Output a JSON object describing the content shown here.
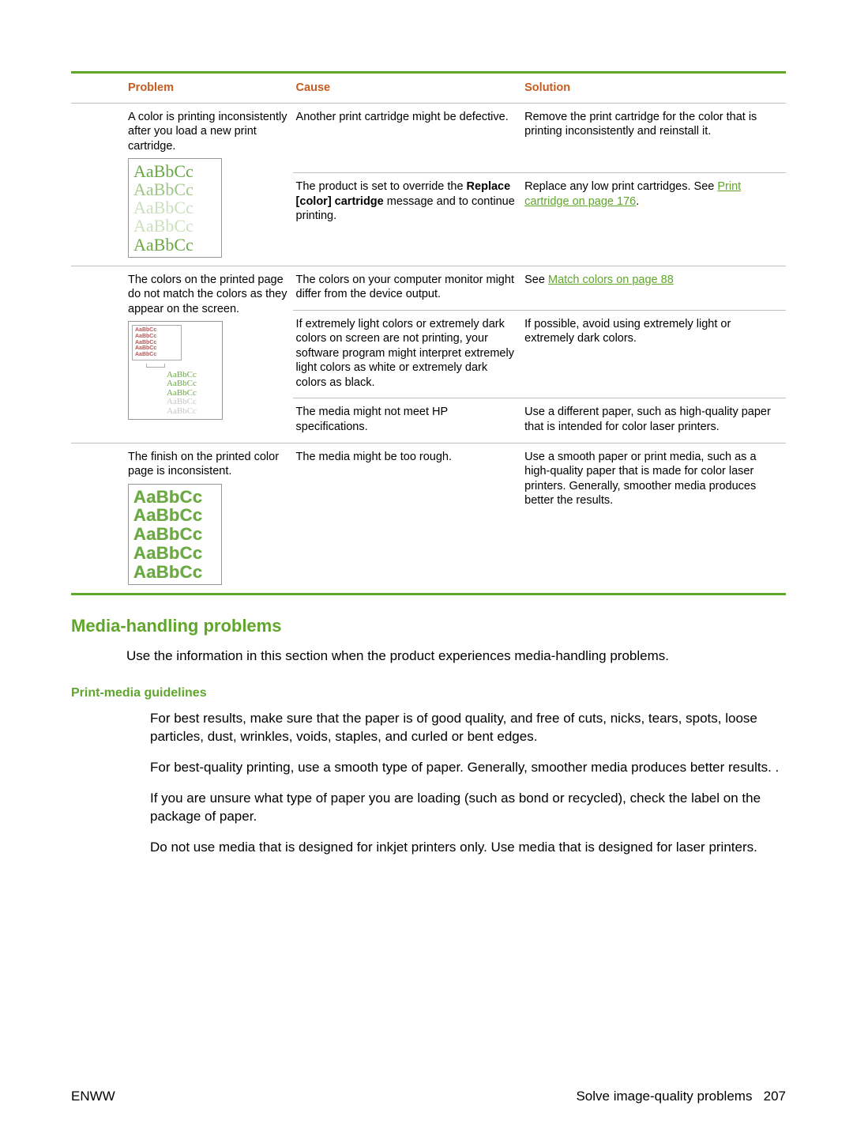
{
  "colors": {
    "accent_green": "#5fa62b",
    "header_orange": "#c75c1f",
    "rule_gray": "#bfbfbf",
    "sample_green": "#6aa843",
    "link_green": "#5fa62b"
  },
  "table": {
    "headers": {
      "problem": "Problem",
      "cause": "Cause",
      "solution": "Solution"
    },
    "rows": [
      {
        "problem": "A color is printing inconsistently after you load a new print cartridge.",
        "sample": "fade",
        "cause_solution": [
          {
            "cause": "Another print cartridge might be defective.",
            "solution": "Remove the print cartridge for the color that is printing inconsistently and reinstall it."
          },
          {
            "cause_pre": "The product is set to override the ",
            "cause_bold": "Replace [color] cartridge",
            "cause_post": " message and to continue printing.",
            "solution_pre": "Replace any low print cartridges. See ",
            "solution_link": "Print cartridge on page 176",
            "solution_post": "."
          }
        ]
      },
      {
        "problem": "The colors on the printed page do not match the colors as they appear on the screen.",
        "sample": "mismatch",
        "cause_solution": [
          {
            "cause": "The colors on your computer monitor might differ from the device output.",
            "solution_pre": "See ",
            "solution_link": "Match colors on page 88",
            "solution_post": ""
          },
          {
            "cause": "If extremely light colors or extremely dark colors on screen are not printing, your software program might interpret extremely light colors as white or extremely dark colors as black.",
            "solution": "If possible, avoid using extremely light or extremely dark colors."
          },
          {
            "cause": "The media might not meet HP specifications.",
            "solution": "Use a different paper, such as high-quality paper that is intended for color laser printers."
          }
        ]
      },
      {
        "problem": "The finish on the printed color page is inconsistent.",
        "sample": "rough",
        "cause_solution": [
          {
            "cause": "The media might be too rough.",
            "solution": "Use a smooth paper or print media, such as a high-quality paper that is made for color laser printers. Generally, smoother media produces better the results."
          }
        ]
      }
    ]
  },
  "section": {
    "heading": "Media-handling problems",
    "intro": "Use the information in this section when the product experiences media-handling problems.",
    "sub_heading": "Print-media guidelines",
    "guidelines": [
      "For best results, make sure that the paper is of good quality, and free of cuts, nicks, tears, spots, loose particles, dust, wrinkles, voids, staples, and curled or bent edges.",
      "For best-quality printing, use a smooth type of paper. Generally, smoother media produces better results. .",
      "If you are unsure what type of paper you are loading (such as bond or recycled), check the label on the package of paper.",
      "Do not use media that is designed for inkjet printers only. Use media that is designed for laser printers."
    ]
  },
  "sample_text": "AaBbCc",
  "footer": {
    "left": "ENWW",
    "right_label": "Solve image-quality problems",
    "page_number": "207"
  }
}
